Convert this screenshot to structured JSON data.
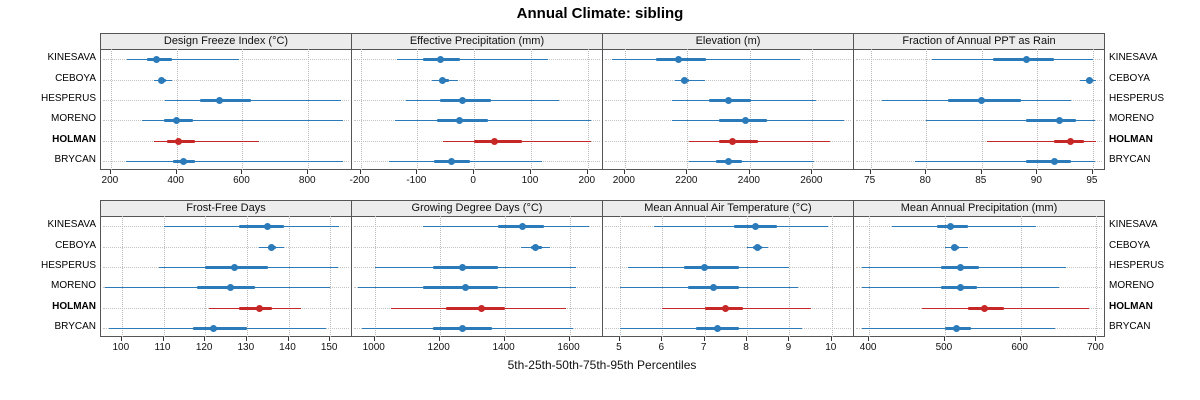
{
  "title": "Annual Climate: sibling",
  "caption": "5th-25th-50th-75th-95th Percentiles",
  "stations": [
    "KINESAVA",
    "CEBOYA",
    "HESPERUS",
    "MORENO",
    "HOLMAN",
    "BRYCAN"
  ],
  "highlight_station": "HOLMAN",
  "colors": {
    "series_normal": "#2b7bba",
    "series_highlight": "#c62828",
    "header_bg": "#ececec",
    "panel_border": "#555555",
    "grid": "#c0c0c0"
  },
  "chart_data": [
    {
      "type": "dot-interval",
      "title": "Design Freeze Index (°C)",
      "xlim": [
        170,
        930
      ],
      "ticks": [
        200,
        400,
        600,
        800
      ],
      "percentile_labels": [
        "p5",
        "p25",
        "p50",
        "p75",
        "p95"
      ],
      "values": [
        [
          250,
          310,
          340,
          385,
          590
        ],
        [
          330,
          345,
          355,
          367,
          385
        ],
        [
          365,
          470,
          530,
          625,
          900
        ],
        [
          295,
          360,
          400,
          450,
          905
        ],
        [
          330,
          370,
          405,
          455,
          650
        ],
        [
          245,
          390,
          420,
          455,
          905
        ]
      ]
    },
    {
      "type": "dot-interval",
      "title": "Effective Precipitation (mm)",
      "xlim": [
        -215,
        225
      ],
      "ticks": [
        -200,
        -100,
        0,
        100,
        200
      ],
      "percentile_labels": [
        "p5",
        "p25",
        "p50",
        "p75",
        "p95"
      ],
      "values": [
        [
          -135,
          -90,
          -60,
          -25,
          130
        ],
        [
          -75,
          -62,
          -55,
          -45,
          -28
        ],
        [
          -120,
          -60,
          -20,
          30,
          150
        ],
        [
          -140,
          -65,
          -25,
          25,
          205
        ],
        [
          -55,
          0,
          35,
          85,
          205
        ],
        [
          -150,
          -70,
          -40,
          -8,
          120
        ]
      ]
    },
    {
      "type": "dot-interval",
      "title": "Elevation (m)",
      "xlim": [
        1930,
        2730
      ],
      "ticks": [
        2000,
        2200,
        2400,
        2600
      ],
      "percentile_labels": [
        "p5",
        "p25",
        "p50",
        "p75",
        "p95"
      ],
      "values": [
        [
          1960,
          2100,
          2170,
          2260,
          2560
        ],
        [
          2160,
          2180,
          2190,
          2205,
          2255
        ],
        [
          2150,
          2270,
          2330,
          2405,
          2610
        ],
        [
          2150,
          2300,
          2385,
          2455,
          2700
        ],
        [
          2205,
          2300,
          2345,
          2425,
          2655
        ],
        [
          2205,
          2290,
          2330,
          2375,
          2605
        ]
      ]
    },
    {
      "type": "dot-interval",
      "title": "Fraction of Annual PPT as Rain",
      "xlim": [
        73.5,
        96
      ],
      "ticks": [
        75,
        80,
        85,
        90,
        95
      ],
      "percentile_labels": [
        "p5",
        "p25",
        "p50",
        "p75",
        "p95"
      ],
      "values": [
        [
          80.5,
          86,
          89,
          91.5,
          95
        ],
        [
          93.8,
          94.4,
          94.7,
          95,
          95.3
        ],
        [
          76,
          82,
          85,
          88.5,
          93
        ],
        [
          80,
          89,
          92,
          93.5,
          95.2
        ],
        [
          85.5,
          91.5,
          93,
          94.2,
          95.3
        ],
        [
          79,
          89,
          91.5,
          93,
          95.2
        ]
      ]
    },
    {
      "type": "dot-interval",
      "title": "Frost-Free Days",
      "xlim": [
        95,
        155
      ],
      "ticks": [
        100,
        110,
        120,
        130,
        140,
        150
      ],
      "percentile_labels": [
        "p5",
        "p25",
        "p50",
        "p75",
        "p95"
      ],
      "values": [
        [
          110,
          128,
          135,
          139,
          152
        ],
        [
          133,
          135,
          136,
          137,
          139
        ],
        [
          109,
          120,
          127,
          135,
          152
        ],
        [
          96,
          118,
          126,
          132,
          150
        ],
        [
          121,
          128,
          133,
          136,
          143
        ],
        [
          97,
          117,
          122,
          130,
          149
        ]
      ]
    },
    {
      "type": "dot-interval",
      "title": "Growing Degree Days (°C)",
      "xlim": [
        930,
        1700
      ],
      "ticks": [
        1000,
        1200,
        1400,
        1600
      ],
      "percentile_labels": [
        "p5",
        "p25",
        "p50",
        "p75",
        "p95"
      ],
      "values": [
        [
          1150,
          1380,
          1455,
          1520,
          1660
        ],
        [
          1450,
          1480,
          1495,
          1515,
          1540
        ],
        [
          1000,
          1180,
          1270,
          1380,
          1620
        ],
        [
          950,
          1150,
          1280,
          1380,
          1620
        ],
        [
          1050,
          1220,
          1330,
          1400,
          1590
        ],
        [
          960,
          1180,
          1270,
          1360,
          1610
        ]
      ]
    },
    {
      "type": "dot-interval",
      "title": "Mean Annual Air Temperature (°C)",
      "xlim": [
        4.6,
        10.5
      ],
      "ticks": [
        5,
        6,
        7,
        8,
        9,
        10
      ],
      "percentile_labels": [
        "p5",
        "p25",
        "p50",
        "p75",
        "p95"
      ],
      "values": [
        [
          5.8,
          7.7,
          8.2,
          8.7,
          9.9
        ],
        [
          8.0,
          8.15,
          8.25,
          8.35,
          8.5
        ],
        [
          5.2,
          6.5,
          7.0,
          7.8,
          9.0
        ],
        [
          5.0,
          6.6,
          7.2,
          7.8,
          9.2
        ],
        [
          6.0,
          7.0,
          7.5,
          7.9,
          9.5
        ],
        [
          5.0,
          6.8,
          7.3,
          7.8,
          9.3
        ]
      ]
    },
    {
      "type": "dot-interval",
      "title": "Mean Annual Precipitation (mm)",
      "xlim": [
        380,
        710
      ],
      "ticks": [
        400,
        500,
        600,
        700
      ],
      "percentile_labels": [
        "p5",
        "p25",
        "p50",
        "p75",
        "p95"
      ],
      "values": [
        [
          430,
          490,
          507,
          530,
          620
        ],
        [
          500,
          508,
          513,
          519,
          530
        ],
        [
          390,
          495,
          520,
          545,
          660
        ],
        [
          390,
          495,
          520,
          542,
          650
        ],
        [
          470,
          530,
          552,
          578,
          690
        ],
        [
          390,
          500,
          515,
          535,
          645
        ]
      ]
    }
  ]
}
